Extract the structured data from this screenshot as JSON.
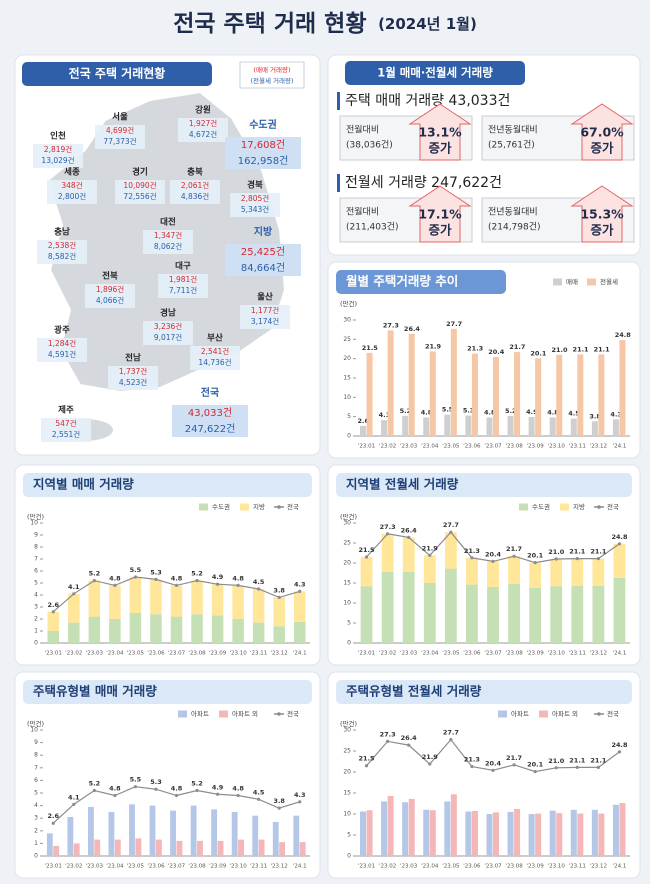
{
  "header": {
    "title": "전국 주택 거래 현황",
    "subtitle": "(2024년 1월)"
  },
  "map": {
    "title": "전국 주택 거래현황",
    "legend": {
      "sale": "(매매 거래량)",
      "rent": "(전월세 거래량)"
    },
    "regions": [
      {
        "name": "서울",
        "sale": "4,699건",
        "rent": "77,373건"
      },
      {
        "name": "인천",
        "sale": "2,819건",
        "rent": "13,029건"
      },
      {
        "name": "경기",
        "sale": "10,090건",
        "rent": "72,556건"
      },
      {
        "name": "강원",
        "sale": "1,927건",
        "rent": "4,672건"
      },
      {
        "name": "충북",
        "sale": "2,061건",
        "rent": "4,836건"
      },
      {
        "name": "세종",
        "sale": "348건",
        "rent": "2,800건"
      },
      {
        "name": "충남",
        "sale": "2,538건",
        "rent": "8,582건"
      },
      {
        "name": "대전",
        "sale": "1,347건",
        "rent": "8,062건"
      },
      {
        "name": "경북",
        "sale": "2,805건",
        "rent": "5,343건"
      },
      {
        "name": "전북",
        "sale": "1,896건",
        "rent": "4,066건"
      },
      {
        "name": "대구",
        "sale": "1,981건",
        "rent": "7,711건"
      },
      {
        "name": "경남",
        "sale": "3,236건",
        "rent": "9,017건"
      },
      {
        "name": "울산",
        "sale": "1,177건",
        "rent": "3,174건"
      },
      {
        "name": "광주",
        "sale": "1,284건",
        "rent": "4,591건"
      },
      {
        "name": "부산",
        "sale": "2,541건",
        "rent": "14,736건"
      },
      {
        "name": "전남",
        "sale": "1,737건",
        "rent": "4,523건"
      },
      {
        "name": "제주",
        "sale": "547건",
        "rent": "2,551건"
      }
    ],
    "totals": [
      {
        "name": "수도권",
        "sale": "17,608건",
        "rent": "162,958건"
      },
      {
        "name": "지방",
        "sale": "25,425건",
        "rent": "84,664건"
      },
      {
        "name": "전국",
        "sale": "43,033건",
        "rent": "247,622건"
      }
    ]
  },
  "summary": {
    "title": "1월 매매·전월세 거래량",
    "items": [
      {
        "label": "주택 매매 거래량 43,033건",
        "comparisons": [
          {
            "label": "전월대비",
            "base": "(38,036건)",
            "rate": "13.1%",
            "direction": "증가"
          },
          {
            "label": "전년동월대비",
            "base": "(25,761건)",
            "rate": "67.0%",
            "direction": "증가"
          }
        ]
      },
      {
        "label": "전월세 거래량 247,622건",
        "comparisons": [
          {
            "label": "전월대비",
            "base": "(211,403건)",
            "rate": "17.1%",
            "direction": "증가"
          },
          {
            "label": "전년동월대비",
            "base": "(214,798건)",
            "rate": "15.3%",
            "direction": "증가"
          }
        ]
      }
    ]
  },
  "chart_data": [
    {
      "type": "bar",
      "title": "월별 주택거래량 추이",
      "unit": "(만건)",
      "categories": [
        "'23.01",
        "'23.02",
        "'23.03",
        "'23.04",
        "'23.05",
        "'23.06",
        "'23.07",
        "'23.08",
        "'23.09",
        "'23.10",
        "'23.11",
        "'23.12",
        "'24.1"
      ],
      "series": [
        {
          "name": "매매",
          "color": "#cfcfcf",
          "values": [
            2.6,
            4.1,
            5.2,
            4.8,
            5.5,
            5.3,
            4.8,
            5.2,
            4.9,
            4.8,
            4.5,
            3.8,
            4.3
          ],
          "value_labels": [
            "2.6",
            "4.1",
            "5.2",
            "4.8",
            "5.5",
            "5.3",
            "4.8",
            "5.2",
            "4.9",
            "4.8",
            "4.5",
            "3.8",
            "4.3"
          ]
        },
        {
          "name": "전월세",
          "color": "#f7c6a6",
          "values": [
            21.5,
            27.3,
            26.4,
            21.9,
            27.7,
            21.3,
            20.4,
            21.7,
            20.1,
            21.0,
            21.1,
            21.1,
            24.8
          ],
          "value_labels": [
            "21.5",
            "27.3",
            "26.4",
            "21.9",
            "27.7",
            "21.3",
            "20.4",
            "21.7",
            "20.1",
            "21.0",
            "21.1",
            "21.1",
            "24.8"
          ]
        }
      ],
      "ylim": [
        0,
        30
      ],
      "yticks": [
        0,
        5,
        10,
        15,
        20,
        25,
        30
      ]
    },
    {
      "type": "stacked_bar",
      "title": "지역별 매매 거래량",
      "unit": "(만건)",
      "categories": [
        "'23.01",
        "'23.02",
        "'23.03",
        "'23.04",
        "'23.05",
        "'23.06",
        "'23.07",
        "'23.08",
        "'23.09",
        "'23.10",
        "'23.11",
        "'23.12",
        "'24.1"
      ],
      "series": [
        {
          "name": "수도권",
          "color": "#c5e0b4",
          "values": [
            1.0,
            1.7,
            2.2,
            2.0,
            2.5,
            2.4,
            2.2,
            2.4,
            2.3,
            2.0,
            1.7,
            1.4,
            1.76
          ]
        },
        {
          "name": "지방",
          "color": "#ffe699",
          "values": [
            1.6,
            2.4,
            3.0,
            2.8,
            3.0,
            2.9,
            2.6,
            2.8,
            2.6,
            2.8,
            2.8,
            2.4,
            2.54
          ]
        },
        {
          "name": "전국",
          "type": "line",
          "color": "#8c8c8c",
          "values": [
            2.6,
            4.1,
            5.2,
            4.8,
            5.5,
            5.3,
            4.8,
            5.2,
            4.9,
            4.8,
            4.5,
            3.8,
            4.3
          ],
          "value_labels": [
            "2.6",
            "4.1",
            "5.2",
            "4.8",
            "5.5",
            "5.3",
            "4.8",
            "5.2",
            "4.9",
            "4.8",
            "4.5",
            "3.8",
            "4.3"
          ]
        }
      ],
      "ylim": [
        0,
        10
      ],
      "yticks": [
        0,
        1,
        2,
        3,
        4,
        5,
        6,
        7,
        8,
        9,
        10
      ]
    },
    {
      "type": "stacked_bar",
      "title": "지역별 전월세 거래량",
      "unit": "(만건)",
      "categories": [
        "'23.01",
        "'23.02",
        "'23.03",
        "'23.04",
        "'23.05",
        "'23.06",
        "'23.07",
        "'23.08",
        "'23.09",
        "'23.10",
        "'23.11",
        "'23.12",
        "'24.1"
      ],
      "series": [
        {
          "name": "수도권",
          "color": "#c5e0b4",
          "values": [
            14.2,
            17.8,
            17.8,
            15.0,
            18.6,
            14.6,
            14.0,
            14.8,
            13.8,
            14.2,
            14.3,
            14.3,
            16.3
          ]
        },
        {
          "name": "지방",
          "color": "#ffe699",
          "values": [
            7.3,
            9.5,
            8.6,
            6.9,
            9.1,
            6.7,
            6.4,
            6.9,
            6.3,
            6.8,
            6.8,
            6.8,
            8.5
          ]
        },
        {
          "name": "전국",
          "type": "line",
          "color": "#8c8c8c",
          "values": [
            21.5,
            27.3,
            26.4,
            21.9,
            27.7,
            21.3,
            20.4,
            21.7,
            20.1,
            21.0,
            21.1,
            21.1,
            24.8
          ],
          "value_labels": [
            "21.5",
            "27.3",
            "26.4",
            "21.9",
            "27.7",
            "21.3",
            "20.4",
            "21.7",
            "20.1",
            "21.0",
            "21.1",
            "21.1",
            "24.8"
          ]
        }
      ],
      "ylim": [
        0,
        30
      ],
      "yticks": [
        0,
        5,
        10,
        15,
        20,
        25,
        30
      ]
    },
    {
      "type": "bar",
      "title": "주택유형별 매매 거래량",
      "unit": "(만건)",
      "categories": [
        "'23.01",
        "'23.02",
        "'23.03",
        "'23.04",
        "'23.05",
        "'23.06",
        "'23.07",
        "'23.08",
        "'23.09",
        "'23.10",
        "'23.11",
        "'23.12",
        "'24.1"
      ],
      "series": [
        {
          "name": "아파트",
          "color": "#b4c7e7",
          "values": [
            1.8,
            3.1,
            3.9,
            3.5,
            4.1,
            4.0,
            3.6,
            4.0,
            3.7,
            3.5,
            3.2,
            2.7,
            3.2
          ]
        },
        {
          "name": "아파트 외",
          "color": "#f4b6b6",
          "values": [
            0.8,
            1.0,
            1.3,
            1.3,
            1.4,
            1.3,
            1.2,
            1.2,
            1.2,
            1.3,
            1.3,
            1.1,
            1.1
          ]
        },
        {
          "name": "전국",
          "type": "line",
          "color": "#8c8c8c",
          "values": [
            2.6,
            4.1,
            5.2,
            4.8,
            5.5,
            5.3,
            4.8,
            5.2,
            4.9,
            4.8,
            4.5,
            3.8,
            4.3
          ],
          "value_labels": [
            "2.6",
            "4.1",
            "5.2",
            "4.8",
            "5.5",
            "5.3",
            "4.8",
            "5.2",
            "4.9",
            "4.8",
            "4.5",
            "3.8",
            "4.3"
          ]
        }
      ],
      "ylim": [
        0,
        10
      ],
      "yticks": [
        0,
        1,
        2,
        3,
        4,
        5,
        6,
        7,
        8,
        9,
        10
      ]
    },
    {
      "type": "bar",
      "title": "주택유형별 전월세 거래량",
      "unit": "(만건)",
      "categories": [
        "'23.01",
        "'23.02",
        "'23.03",
        "'23.04",
        "'23.05",
        "'23.06",
        "'23.07",
        "'23.08",
        "'23.09",
        "'23.10",
        "'23.11",
        "'23.12",
        "'24.1"
      ],
      "series": [
        {
          "name": "아파트",
          "color": "#b4c7e7",
          "values": [
            10.6,
            13.0,
            12.8,
            11.0,
            13.0,
            10.6,
            10.0,
            10.5,
            10.0,
            10.8,
            11.0,
            11.0,
            12.2
          ]
        },
        {
          "name": "아파트 외",
          "color": "#f4b6b6",
          "values": [
            10.9,
            14.3,
            13.6,
            10.9,
            14.7,
            10.7,
            10.4,
            11.2,
            10.1,
            10.2,
            10.1,
            10.1,
            12.6
          ]
        },
        {
          "name": "전국",
          "type": "line",
          "color": "#8c8c8c",
          "values": [
            21.5,
            27.3,
            26.4,
            21.9,
            27.7,
            21.3,
            20.4,
            21.7,
            20.1,
            21.0,
            21.1,
            21.1,
            24.8
          ],
          "value_labels": [
            "21.5",
            "27.3",
            "26.4",
            "21.9",
            "27.7",
            "21.3",
            "20.4",
            "21.7",
            "20.1",
            "21.0",
            "21.1",
            "21.1",
            "24.8"
          ]
        }
      ],
      "ylim": [
        0,
        30
      ],
      "yticks": [
        0,
        5,
        10,
        15,
        20,
        25,
        30
      ]
    }
  ]
}
